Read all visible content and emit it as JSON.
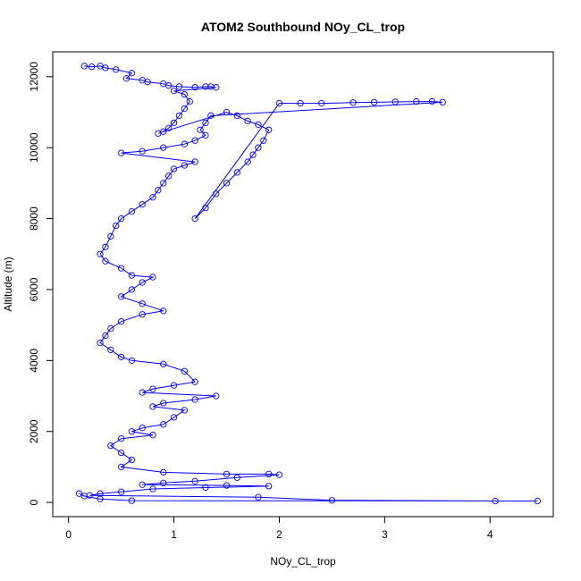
{
  "chart_data": {
    "type": "scatter",
    "title": "ATOM2 Southbound NOy_CL_trop",
    "xlabel": "NOy_CL_trop",
    "ylabel": "Altitude (m)",
    "xlim": [
      -0.15,
      4.6
    ],
    "ylim": [
      -400,
      12700
    ],
    "x_ticks": [
      0,
      1,
      2,
      3,
      4
    ],
    "y_ticks": [
      0,
      2000,
      4000,
      6000,
      8000,
      10000,
      12000
    ],
    "grid": false,
    "legend": "none",
    "series": [
      {
        "color": "#0000ff",
        "marker": "open-circle",
        "connected": true,
        "points": [
          [
            0.15,
            12300
          ],
          [
            0.22,
            12280
          ],
          [
            0.3,
            12300
          ],
          [
            0.35,
            12250
          ],
          [
            0.45,
            12200
          ],
          [
            0.6,
            12100
          ],
          [
            0.55,
            11950
          ],
          [
            0.7,
            11900
          ],
          [
            0.75,
            11850
          ],
          [
            0.9,
            11800
          ],
          [
            0.95,
            11750
          ],
          [
            1.05,
            11720
          ],
          [
            1.2,
            11700
          ],
          [
            1.3,
            11720
          ],
          [
            1.35,
            11720
          ],
          [
            1.4,
            11700
          ],
          [
            1.0,
            11600
          ],
          [
            1.1,
            11500
          ],
          [
            1.15,
            11300
          ],
          [
            1.1,
            11100
          ],
          [
            1.05,
            10900
          ],
          [
            1.0,
            10700
          ],
          [
            0.95,
            10550
          ],
          [
            0.9,
            10450
          ],
          [
            0.85,
            10400
          ],
          [
            1.5,
            11000
          ],
          [
            1.6,
            10900
          ],
          [
            1.7,
            10750
          ],
          [
            1.8,
            10650
          ],
          [
            1.9,
            10500
          ],
          [
            1.85,
            10200
          ],
          [
            1.8,
            10000
          ],
          [
            1.75,
            9800
          ],
          [
            1.7,
            9600
          ],
          [
            1.6,
            9300
          ],
          [
            1.5,
            9000
          ],
          [
            1.4,
            8700
          ],
          [
            1.3,
            8300
          ],
          [
            1.2,
            8000
          ],
          [
            2.0,
            11250
          ],
          [
            2.2,
            11250
          ],
          [
            2.4,
            11250
          ],
          [
            2.7,
            11270
          ],
          [
            2.9,
            11280
          ],
          [
            3.1,
            11290
          ],
          [
            3.3,
            11300
          ],
          [
            3.45,
            11300
          ],
          [
            3.55,
            11280
          ],
          [
            1.35,
            10900
          ],
          [
            1.3,
            10700
          ],
          [
            1.25,
            10500
          ],
          [
            1.3,
            10350
          ],
          [
            1.2,
            10200
          ],
          [
            1.1,
            10100
          ],
          [
            0.9,
            10000
          ],
          [
            0.7,
            9900
          ],
          [
            0.5,
            9850
          ],
          [
            1.2,
            9600
          ],
          [
            1.1,
            9500
          ],
          [
            1.0,
            9400
          ],
          [
            0.95,
            9200
          ],
          [
            0.9,
            9000
          ],
          [
            0.85,
            8800
          ],
          [
            0.8,
            8600
          ],
          [
            0.7,
            8400
          ],
          [
            0.6,
            8200
          ],
          [
            0.5,
            8000
          ],
          [
            0.45,
            7800
          ],
          [
            0.4,
            7500
          ],
          [
            0.35,
            7200
          ],
          [
            0.3,
            7000
          ],
          [
            0.35,
            6800
          ],
          [
            0.5,
            6600
          ],
          [
            0.6,
            6400
          ],
          [
            0.8,
            6350
          ],
          [
            0.7,
            6200
          ],
          [
            0.6,
            6000
          ],
          [
            0.5,
            5800
          ],
          [
            0.7,
            5600
          ],
          [
            0.9,
            5400
          ],
          [
            0.7,
            5300
          ],
          [
            0.5,
            5100
          ],
          [
            0.4,
            4900
          ],
          [
            0.35,
            4700
          ],
          [
            0.3,
            4500
          ],
          [
            0.4,
            4300
          ],
          [
            0.5,
            4100
          ],
          [
            0.6,
            4000
          ],
          [
            0.9,
            3900
          ],
          [
            1.1,
            3700
          ],
          [
            1.2,
            3400
          ],
          [
            1.0,
            3300
          ],
          [
            0.8,
            3200
          ],
          [
            0.7,
            3100
          ],
          [
            1.4,
            3000
          ],
          [
            1.2,
            2900
          ],
          [
            0.9,
            2800
          ],
          [
            0.8,
            2700
          ],
          [
            1.1,
            2600
          ],
          [
            1.0,
            2400
          ],
          [
            0.9,
            2200
          ],
          [
            0.7,
            2100
          ],
          [
            0.6,
            2000
          ],
          [
            0.8,
            1900
          ],
          [
            0.5,
            1800
          ],
          [
            0.4,
            1600
          ],
          [
            0.5,
            1400
          ],
          [
            0.6,
            1200
          ],
          [
            0.5,
            1000
          ],
          [
            0.9,
            850
          ],
          [
            1.5,
            800
          ],
          [
            1.9,
            800
          ],
          [
            2.0,
            780
          ],
          [
            1.6,
            700
          ],
          [
            1.2,
            600
          ],
          [
            0.9,
            550
          ],
          [
            0.7,
            500
          ],
          [
            1.5,
            480
          ],
          [
            1.9,
            460
          ],
          [
            1.3,
            420
          ],
          [
            0.8,
            380
          ],
          [
            0.5,
            300
          ],
          [
            0.3,
            250
          ],
          [
            0.2,
            200
          ],
          [
            1.8,
            150
          ],
          [
            2.5,
            60
          ],
          [
            4.05,
            40
          ],
          [
            4.45,
            40
          ],
          [
            0.6,
            50
          ],
          [
            0.3,
            100
          ],
          [
            0.15,
            180
          ],
          [
            0.1,
            250
          ]
        ]
      }
    ]
  }
}
